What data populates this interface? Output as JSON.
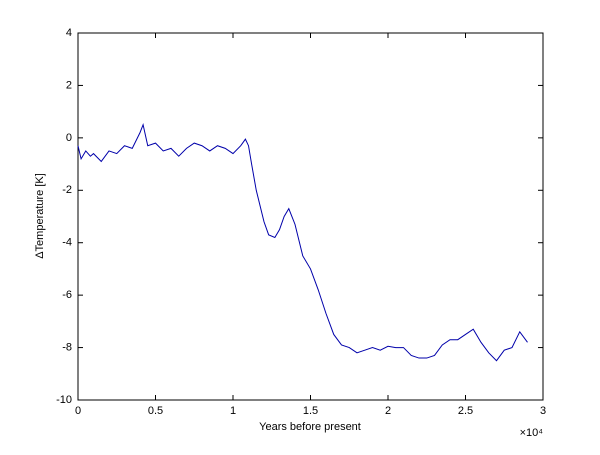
{
  "chart_data": {
    "type": "line",
    "xlabel": "Years before present",
    "ylabel": "ΔTemperature  [K]",
    "x_multiplier": "×10⁴",
    "x": [
      0,
      200,
      500,
      800,
      1000,
      1500,
      2000,
      2500,
      3000,
      3500,
      4000,
      4200,
      4500,
      5000,
      5500,
      6000,
      6500,
      7000,
      7500,
      8000,
      8500,
      9000,
      9500,
      10000,
      10500,
      10800,
      11000,
      11200,
      11500,
      12000,
      12300,
      12700,
      13000,
      13300,
      13600,
      14000,
      14500,
      15000,
      15500,
      16000,
      16500,
      17000,
      17500,
      18000,
      18500,
      19000,
      19500,
      20000,
      20500,
      21000,
      21500,
      22000,
      22500,
      23000,
      23500,
      24000,
      24500,
      25000,
      25500,
      26000,
      26500,
      27000,
      27500,
      28000,
      28500,
      29000
    ],
    "series": [
      {
        "color": "#0000aa",
        "values": [
          -0.3,
          -0.8,
          -0.5,
          -0.7,
          -0.6,
          -0.9,
          -0.5,
          -0.6,
          -0.3,
          -0.4,
          0.2,
          0.5,
          -0.3,
          -0.2,
          -0.5,
          -0.4,
          -0.7,
          -0.4,
          -0.2,
          -0.3,
          -0.5,
          -0.3,
          -0.4,
          -0.6,
          -0.3,
          -0.05,
          -0.3,
          -1.0,
          -2.0,
          -3.2,
          -3.7,
          -3.8,
          -3.5,
          -3.0,
          -2.7,
          -3.3,
          -4.5,
          -5.0,
          -5.8,
          -6.7,
          -7.5,
          -7.9,
          -8.0,
          -8.2,
          -8.1,
          -8.0,
          -8.1,
          -7.95,
          -8.0,
          -8.0,
          -8.3,
          -8.4,
          -8.4,
          -8.3,
          -7.9,
          -7.7,
          -7.7,
          -7.5,
          -7.3,
          -7.8,
          -8.2,
          -8.5,
          -8.1,
          -8.0,
          -7.4,
          -7.8
        ]
      }
    ],
    "xlim": [
      0,
      30000
    ],
    "xticks": [
      0,
      {
        "value": 5000,
        "label": "0.5"
      },
      {
        "value": 10000,
        "label": "1"
      },
      {
        "value": 15000,
        "label": "1.5"
      },
      {
        "value": 20000,
        "label": "2"
      },
      {
        "value": 25000,
        "label": "2.5"
      },
      {
        "value": 30000,
        "label": "3"
      }
    ],
    "ylim": [
      -10,
      4
    ],
    "yticks": [
      -10,
      -8,
      -6,
      -4,
      -2,
      0,
      2,
      4
    ],
    "grid": false
  }
}
